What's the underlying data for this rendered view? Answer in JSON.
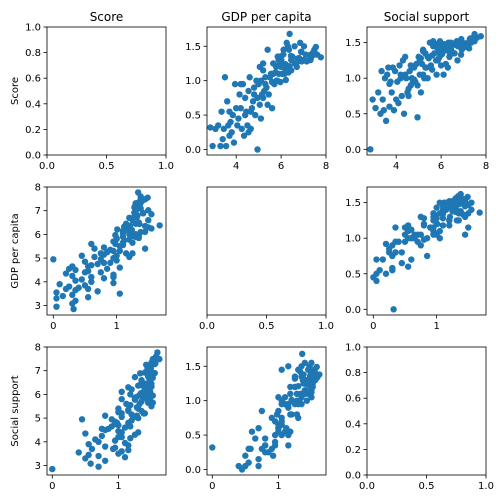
{
  "chart_data": {
    "type": "scatter",
    "variables": [
      "Score",
      "GDP per capita",
      "Social support"
    ],
    "marker_color": "#1f77b4",
    "panels": [
      {
        "row": 0,
        "col": 0,
        "empty": true,
        "title": "Score",
        "ylabel": "Score",
        "xlim": [
          0,
          1
        ],
        "ylim": [
          0,
          1
        ],
        "xticks": [
          "0.0",
          "0.5",
          "1.0"
        ],
        "xtick_values": [
          0,
          0.5,
          1
        ],
        "yticks": [
          "0.0",
          "0.2",
          "0.4",
          "0.6",
          "0.8",
          "1.0"
        ],
        "ytick_values": [
          0,
          0.2,
          0.4,
          0.6,
          0.8,
          1.0
        ]
      },
      {
        "row": 0,
        "col": 1,
        "title": "GDP per capita",
        "x_var": "Score",
        "y_var": "GDP per capita",
        "xlim": [
          2.7,
          8.0
        ],
        "ylim": [
          -0.08,
          1.78
        ],
        "xticks": [
          "4",
          "6",
          "8"
        ],
        "xtick_values": [
          4,
          6,
          8
        ],
        "yticks": [
          "0.0",
          "0.5",
          "1.0",
          "1.5"
        ],
        "ytick_values": [
          0,
          0.5,
          1.0,
          1.5
        ]
      },
      {
        "row": 0,
        "col": 2,
        "title": "Social support",
        "x_var": "Score",
        "y_var": "Social support",
        "xlim": [
          2.7,
          8.0
        ],
        "ylim": [
          -0.08,
          1.72
        ],
        "xticks": [
          "4",
          "6",
          "8"
        ],
        "xtick_values": [
          4,
          6,
          8
        ],
        "yticks": [
          "0.0",
          "0.5",
          "1.0",
          "1.5"
        ],
        "ytick_values": [
          0,
          0.5,
          1.0,
          1.5
        ]
      },
      {
        "row": 1,
        "col": 0,
        "ylabel": "GDP per capita",
        "x_var": "GDP per capita",
        "y_var": "Score",
        "xlim": [
          -0.1,
          1.78
        ],
        "ylim": [
          2.6,
          8.0
        ],
        "xticks": [
          "0",
          "1"
        ],
        "xtick_values": [
          0,
          1
        ],
        "yticks": [
          "3",
          "4",
          "5",
          "6",
          "7",
          "8"
        ],
        "ytick_values": [
          3,
          4,
          5,
          6,
          7,
          8
        ]
      },
      {
        "row": 1,
        "col": 1,
        "empty": true,
        "xlim": [
          0,
          1
        ],
        "ylim": [
          0,
          1
        ],
        "xticks": [
          "0.0",
          "0.5",
          "1.0"
        ],
        "xtick_values": [
          0,
          0.5,
          1
        ],
        "yticks": [],
        "ytick_values": []
      },
      {
        "row": 1,
        "col": 2,
        "x_var": "GDP per capita",
        "y_var": "Social support",
        "xlim": [
          -0.1,
          1.78
        ],
        "ylim": [
          -0.08,
          1.72
        ],
        "xticks": [
          "0",
          "1"
        ],
        "xtick_values": [
          0,
          1
        ],
        "yticks": [
          "0.0",
          "0.5",
          "1.0",
          "1.5"
        ],
        "ytick_values": [
          0,
          0.5,
          1.0,
          1.5
        ]
      },
      {
        "row": 2,
        "col": 0,
        "ylabel": "Social support",
        "x_var": "Social support",
        "y_var": "Score",
        "xlim": [
          -0.08,
          1.72
        ],
        "ylim": [
          2.6,
          8.0
        ],
        "xticks": [
          "0",
          "1"
        ],
        "xtick_values": [
          0,
          1
        ],
        "yticks": [
          "3",
          "4",
          "5",
          "6",
          "7",
          "8"
        ],
        "ytick_values": [
          3,
          4,
          5,
          6,
          7,
          8
        ]
      },
      {
        "row": 2,
        "col": 1,
        "x_var": "Social support",
        "y_var": "GDP per capita",
        "xlim": [
          -0.08,
          1.72
        ],
        "ylim": [
          -0.08,
          1.78
        ],
        "xticks": [
          "0",
          "1"
        ],
        "xtick_values": [
          0,
          1
        ],
        "yticks": [
          "0.0",
          "0.5",
          "1.0",
          "1.5"
        ],
        "ytick_values": [
          0,
          0.5,
          1.0,
          1.5
        ]
      },
      {
        "row": 2,
        "col": 2,
        "empty": true,
        "xlim": [
          0,
          1
        ],
        "ylim": [
          0,
          1
        ],
        "xticks": [
          "0.0",
          "0.5",
          "1.0"
        ],
        "xtick_values": [
          0,
          0.5,
          1
        ],
        "yticks": [
          "0.0",
          "0.2",
          "0.4",
          "0.6",
          "0.8",
          "1.0"
        ],
        "ytick_values": [
          0,
          0.2,
          0.4,
          0.6,
          0.8,
          1.0
        ]
      }
    ],
    "records": [
      [
        7.77,
        1.34,
        1.59
      ],
      [
        7.6,
        1.38,
        1.57
      ],
      [
        7.55,
        1.49,
        1.58
      ],
      [
        7.49,
        1.38,
        1.62
      ],
      [
        7.49,
        1.4,
        1.52
      ],
      [
        7.48,
        1.45,
        1.53
      ],
      [
        7.34,
        1.34,
        1.5
      ],
      [
        7.31,
        1.3,
        1.56
      ],
      [
        7.28,
        1.37,
        1.55
      ],
      [
        7.25,
        1.3,
        1.42
      ],
      [
        7.17,
        1.29,
        1.48
      ],
      [
        7.14,
        1.28,
        1.44
      ],
      [
        7.09,
        1.38,
        1.49
      ],
      [
        7.02,
        1.5,
        1.47
      ],
      [
        6.99,
        1.3,
        1.43
      ],
      [
        6.92,
        1.28,
        1.4
      ],
      [
        6.89,
        1.42,
        1.33
      ],
      [
        6.85,
        1.55,
        1.5
      ],
      [
        6.8,
        1.33,
        1.48
      ],
      [
        6.73,
        1.32,
        1.25
      ],
      [
        6.61,
        1.25,
        1.47
      ],
      [
        6.5,
        1.35,
        1.35
      ],
      [
        6.45,
        1.3,
        1.4
      ],
      [
        6.44,
        1.36,
        1.48
      ],
      [
        6.38,
        1.68,
        1.36
      ],
      [
        6.37,
        1.21,
        1.3
      ],
      [
        6.35,
        1.45,
        1.45
      ],
      [
        6.33,
        1.12,
        1.5
      ],
      [
        6.3,
        1.5,
        1.15
      ],
      [
        6.21,
        1.01,
        1.2
      ],
      [
        6.19,
        1.24,
        1.42
      ],
      [
        6.15,
        1.1,
        1.4
      ],
      [
        6.12,
        1.22,
        1.48
      ],
      [
        6.11,
        1.45,
        1.05
      ],
      [
        6.1,
        1.38,
        1.38
      ],
      [
        6.05,
        1.1,
        1.34
      ],
      [
        6.01,
        1.3,
        1.45
      ],
      [
        6.0,
        1.2,
        1.18
      ],
      [
        5.97,
        0.98,
        1.32
      ],
      [
        5.94,
        1.25,
        1.45
      ],
      [
        5.9,
        1.1,
        1.28
      ],
      [
        5.89,
        1.3,
        1.37
      ],
      [
        5.83,
        1.0,
        1.43
      ],
      [
        5.8,
        1.0,
        1.05
      ],
      [
        5.78,
        1.2,
        1.25
      ],
      [
        5.75,
        1.12,
        1.48
      ],
      [
        5.7,
        0.95,
        1.35
      ],
      [
        5.65,
        1.25,
        1.52
      ],
      [
        5.6,
        0.98,
        1.32
      ],
      [
        5.55,
        1.1,
        1.18
      ],
      [
        5.5,
        1.05,
        1.5
      ],
      [
        5.45,
        0.8,
        1.28
      ],
      [
        5.4,
        1.45,
        1.3
      ],
      [
        5.35,
        0.9,
        1.15
      ],
      [
        5.3,
        1.05,
        1.35
      ],
      [
        5.25,
        0.85,
        1.0
      ],
      [
        5.2,
        1.15,
        1.4
      ],
      [
        5.15,
        0.8,
        1.2
      ],
      [
        5.1,
        1.0,
        1.28
      ],
      [
        5.05,
        0.65,
        1.05
      ],
      [
        5.0,
        0.95,
        1.3
      ],
      [
        4.95,
        0.75,
        0.9
      ],
      [
        4.9,
        1.0,
        1.2
      ],
      [
        4.85,
        0.5,
        0.95
      ],
      [
        4.8,
        0.9,
        1.15
      ],
      [
        4.75,
        0.7,
        0.95
      ],
      [
        4.7,
        0.6,
        1.0
      ],
      [
        4.65,
        0.3,
        0.9
      ],
      [
        4.6,
        1.05,
        1.1
      ],
      [
        4.55,
        0.85,
        0.75
      ],
      [
        4.5,
        0.35,
        0.8
      ],
      [
        4.45,
        0.55,
        1.0
      ],
      [
        4.4,
        0.75,
        1.3
      ],
      [
        4.35,
        0.2,
        0.5
      ],
      [
        4.3,
        0.95,
        1.25
      ],
      [
        4.25,
        0.3,
        0.75
      ],
      [
        4.2,
        0.6,
        1.0
      ],
      [
        4.15,
        0.8,
        1.18
      ],
      [
        4.1,
        0.45,
        0.65
      ],
      [
        4.05,
        0.35,
        0.95
      ],
      [
        4.0,
        0.6,
        0.7
      ],
      [
        3.95,
        0.95,
        1.1
      ],
      [
        3.9,
        0.1,
        0.55
      ],
      [
        3.85,
        0.5,
        1.15
      ],
      [
        3.8,
        0.25,
        0.8
      ],
      [
        3.75,
        0.4,
        0.95
      ],
      [
        3.7,
        0.55,
        0.6
      ],
      [
        3.65,
        0.35,
        1.15
      ],
      [
        3.6,
        0.7,
        1.05
      ],
      [
        3.55,
        0.05,
        0.4
      ],
      [
        3.5,
        1.05,
        1.0
      ],
      [
        3.45,
        0.3,
        0.55
      ],
      [
        3.4,
        0.15,
        0.7
      ],
      [
        3.35,
        0.55,
        1.1
      ],
      [
        3.3,
        0.05,
        0.5
      ],
      [
        3.2,
        0.35,
        0.8
      ],
      [
        3.08,
        0.3,
        0.58
      ],
      [
        2.95,
        0.05,
        0.7
      ],
      [
        2.85,
        0.32,
        0.0
      ],
      [
        4.95,
        0.0,
        0.45
      ],
      [
        5.1,
        0.45,
        0.8
      ],
      [
        5.2,
        0.75,
        1.05
      ],
      [
        5.3,
        0.95,
        1.15
      ],
      [
        5.4,
        0.65,
        1.0
      ],
      [
        4.55,
        0.25,
        0.85
      ],
      [
        6.25,
        1.55,
        1.4
      ],
      [
        6.6,
        1.5,
        1.35
      ],
      [
        7.0,
        1.3,
        1.48
      ],
      [
        6.7,
        1.2,
        1.52
      ],
      [
        5.85,
        1.35,
        1.25
      ],
      [
        6.2,
        1.15,
        1.42
      ],
      [
        5.6,
        0.6,
        1.12
      ],
      [
        4.4,
        0.5,
        1.05
      ],
      [
        3.7,
        0.2,
        0.92
      ],
      [
        6.9,
        1.42,
        1.55
      ],
      [
        7.4,
        1.4,
        1.55
      ],
      [
        5.2,
        1.25,
        1.38
      ],
      [
        4.8,
        0.8,
        0.98
      ],
      [
        6.45,
        1.15,
        1.5
      ],
      [
        5.65,
        1.1,
        1.45
      ],
      [
        4.2,
        0.95,
        1.05
      ],
      [
        5.95,
        1.35,
        1.52
      ],
      [
        6.75,
        1.28,
        1.45
      ],
      [
        4.65,
        0.55,
        1.18
      ],
      [
        5.05,
        1.2,
        1.25
      ]
    ]
  }
}
